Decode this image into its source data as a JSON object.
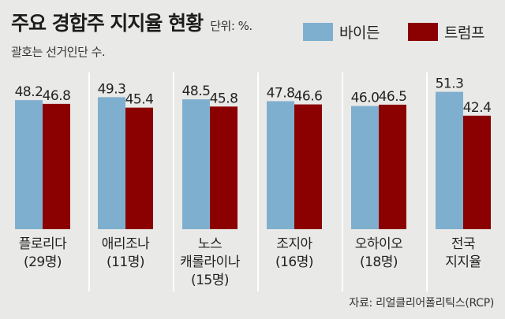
{
  "title": "주요 경합주 지지율 현황",
  "unit": "단위: %.",
  "subtitle": "괄호는 선거인단 수.",
  "source": "자료: 리얼클리어폴리틱스(RCP)",
  "colors": {
    "biden": "#7fafcf",
    "trump": "#8b0000",
    "background": "#e9e9e7",
    "divider": "#ffffff"
  },
  "chart_data": {
    "type": "bar",
    "categories": [
      [
        "플로리다",
        "(29명)"
      ],
      [
        "애리조나",
        "(11명)"
      ],
      [
        "노스",
        "캐롤라이나",
        "(15명)"
      ],
      [
        "조지아",
        "(16명)"
      ],
      [
        "오하이오",
        "(18명)"
      ],
      [
        "전국",
        "지지율"
      ]
    ],
    "series": [
      {
        "name": "바이든",
        "values": [
          48.2,
          49.3,
          48.5,
          47.8,
          46.0,
          51.3
        ]
      },
      {
        "name": "트럼프",
        "values": [
          46.8,
          45.4,
          45.8,
          46.6,
          46.5,
          42.4
        ]
      }
    ],
    "value_labels_biden": [
      "48.2",
      "49.3",
      "48.5",
      "47.8",
      "46.0",
      "51.3"
    ],
    "value_labels_trump": [
      "46.8",
      "45.4",
      "45.8",
      "46.6",
      "46.5",
      "42.4"
    ],
    "legend_position": "top-right",
    "grid": false
  }
}
